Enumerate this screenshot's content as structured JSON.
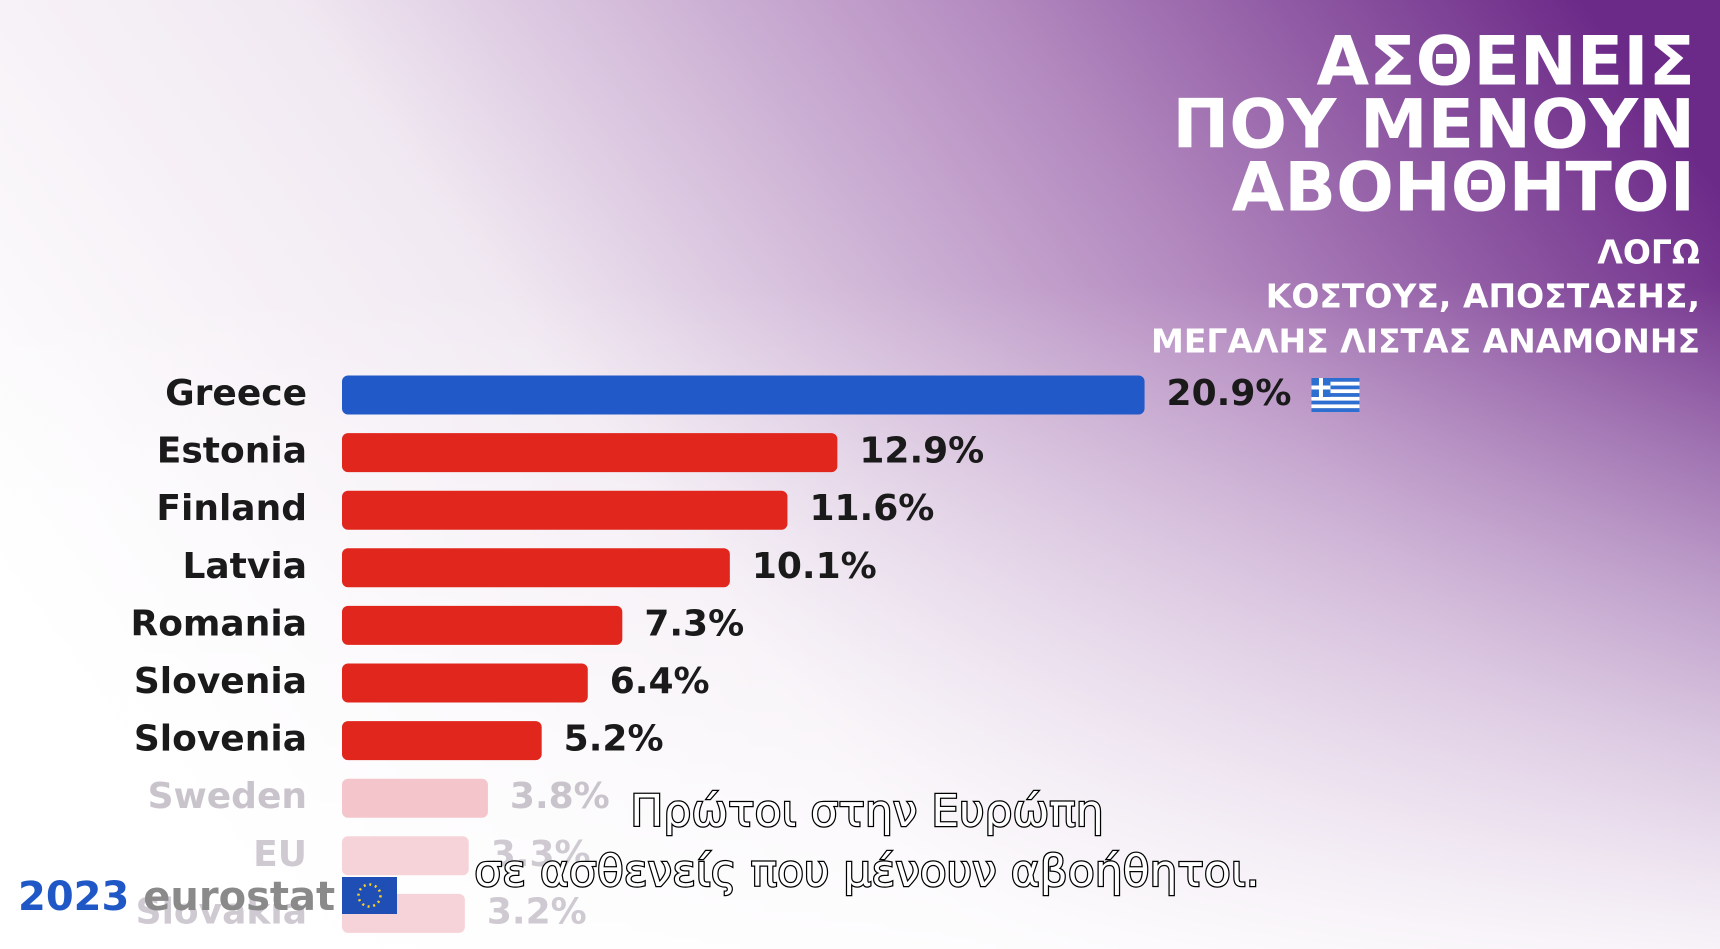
{
  "chart_data": {
    "type": "bar",
    "orientation": "horizontal",
    "title": [
      "ΑΣΘΕΝΕΙΣ",
      "ΠΟΥ ΜΕΝΟΥΝ",
      "ΑΒΟΗΘΗΤΟΙ"
    ],
    "subtitle": [
      "ΛΟΓΩ",
      "ΚΟΣΤΟΥΣ, ΑΠΟΣΤΑΣΗΣ,",
      "ΜΕΓΑΛΗΣ ΛΙΣΤΑΣ ΑΝΑΜΟΝΗΣ"
    ],
    "categories": [
      "Greece",
      "Estonia",
      "Finland",
      "Latvia",
      "Romania",
      "Slovenia",
      "Slovenia",
      "Sweden",
      "EU",
      "Slovakia"
    ],
    "values": [
      20.9,
      12.9,
      11.6,
      10.1,
      7.3,
      6.4,
      5.2,
      3.8,
      3.3,
      3.2
    ],
    "value_labels": [
      "20.9%",
      "12.9%",
      "11.6%",
      "10.1%",
      "7.3%",
      "6.4%",
      "5.2%",
      "3.8%",
      "3.3%",
      "3.2%"
    ],
    "colors": [
      "#2159c8",
      "#e0261d",
      "#e0261d",
      "#e0261d",
      "#e0261d",
      "#e0261d",
      "#e0261d",
      "#f4c6cc",
      "#f6d3d8",
      "#f6d3d8"
    ],
    "label_colors": [
      "#1a1a1a",
      "#1a1a1a",
      "#1a1a1a",
      "#1a1a1a",
      "#1a1a1a",
      "#1a1a1a",
      "#1a1a1a",
      "#c9c3cc",
      "#cfc9d2",
      "#cfc9d2"
    ]
  },
  "captions": [
    "Πρώτοι στην Ευρώπη",
    "σε ασθενείς που μένουν αβοήθητοι."
  ],
  "logo": {
    "year": "2023",
    "brand": "eurostat"
  }
}
